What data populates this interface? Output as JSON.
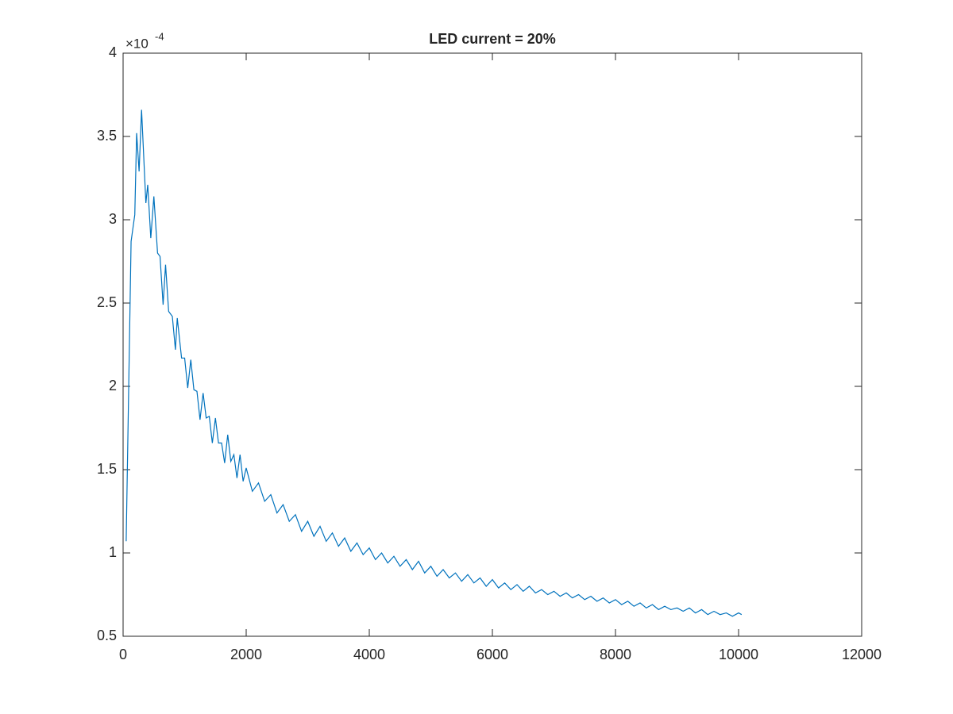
{
  "chart_data": {
    "type": "line",
    "title": "LED current = 20%",
    "y_exponent": {
      "base": "×10",
      "power": "-4"
    },
    "x": [
      50,
      130,
      190,
      220,
      260,
      300,
      370,
      400,
      450,
      500,
      560,
      600,
      650,
      690,
      740,
      800,
      850,
      880,
      950,
      1000,
      1050,
      1100,
      1150,
      1200,
      1250,
      1300,
      1350,
      1400,
      1450,
      1500,
      1550,
      1600,
      1650,
      1700,
      1750,
      1800,
      1850,
      1900,
      1950,
      2000,
      2100,
      2200,
      2300,
      2400,
      2500,
      2600,
      2700,
      2800,
      2900,
      3000,
      3100,
      3200,
      3300,
      3400,
      3500,
      3600,
      3700,
      3800,
      3900,
      4000,
      4100,
      4200,
      4300,
      4400,
      4500,
      4600,
      4700,
      4800,
      4900,
      5000,
      5100,
      5200,
      5300,
      5400,
      5500,
      5600,
      5700,
      5800,
      5900,
      6000,
      6100,
      6200,
      6300,
      6400,
      6500,
      6600,
      6700,
      6800,
      6900,
      7000,
      7100,
      7200,
      7300,
      7400,
      7500,
      7600,
      7700,
      7800,
      7900,
      8000,
      8100,
      8200,
      8300,
      8400,
      8500,
      8600,
      8700,
      8800,
      8900,
      9000,
      9100,
      9200,
      9300,
      9400,
      9500,
      9600,
      9700,
      9800,
      9900,
      10000,
      10050
    ],
    "values": [
      1.07,
      2.87,
      3.03,
      3.52,
      3.29,
      3.66,
      3.1,
      3.21,
      2.89,
      3.14,
      2.8,
      2.78,
      2.49,
      2.73,
      2.45,
      2.42,
      2.22,
      2.41,
      2.17,
      2.17,
      1.99,
      2.16,
      1.98,
      1.97,
      1.8,
      1.96,
      1.81,
      1.82,
      1.66,
      1.81,
      1.66,
      1.66,
      1.54,
      1.71,
      1.55,
      1.59,
      1.45,
      1.59,
      1.43,
      1.51,
      1.37,
      1.42,
      1.31,
      1.35,
      1.24,
      1.29,
      1.19,
      1.23,
      1.13,
      1.19,
      1.1,
      1.16,
      1.07,
      1.12,
      1.04,
      1.09,
      1.01,
      1.06,
      0.99,
      1.03,
      0.96,
      1.0,
      0.94,
      0.98,
      0.92,
      0.96,
      0.9,
      0.95,
      0.88,
      0.92,
      0.86,
      0.9,
      0.85,
      0.88,
      0.83,
      0.87,
      0.82,
      0.85,
      0.8,
      0.84,
      0.79,
      0.82,
      0.78,
      0.81,
      0.77,
      0.8,
      0.76,
      0.78,
      0.75,
      0.77,
      0.74,
      0.76,
      0.73,
      0.75,
      0.72,
      0.74,
      0.71,
      0.73,
      0.7,
      0.72,
      0.69,
      0.71,
      0.68,
      0.7,
      0.67,
      0.69,
      0.66,
      0.68,
      0.66,
      0.67,
      0.65,
      0.67,
      0.64,
      0.66,
      0.63,
      0.65,
      0.63,
      0.64,
      0.62,
      0.64,
      0.63
    ],
    "color": "#0072bd",
    "xlim": [
      0,
      12000
    ],
    "xticks": [
      0,
      2000,
      4000,
      6000,
      8000,
      10000,
      12000
    ],
    "ylim": [
      0.5,
      4
    ],
    "yticks": [
      0.5,
      1,
      1.5,
      2,
      2.5,
      3,
      3.5,
      4
    ],
    "grid": false
  }
}
